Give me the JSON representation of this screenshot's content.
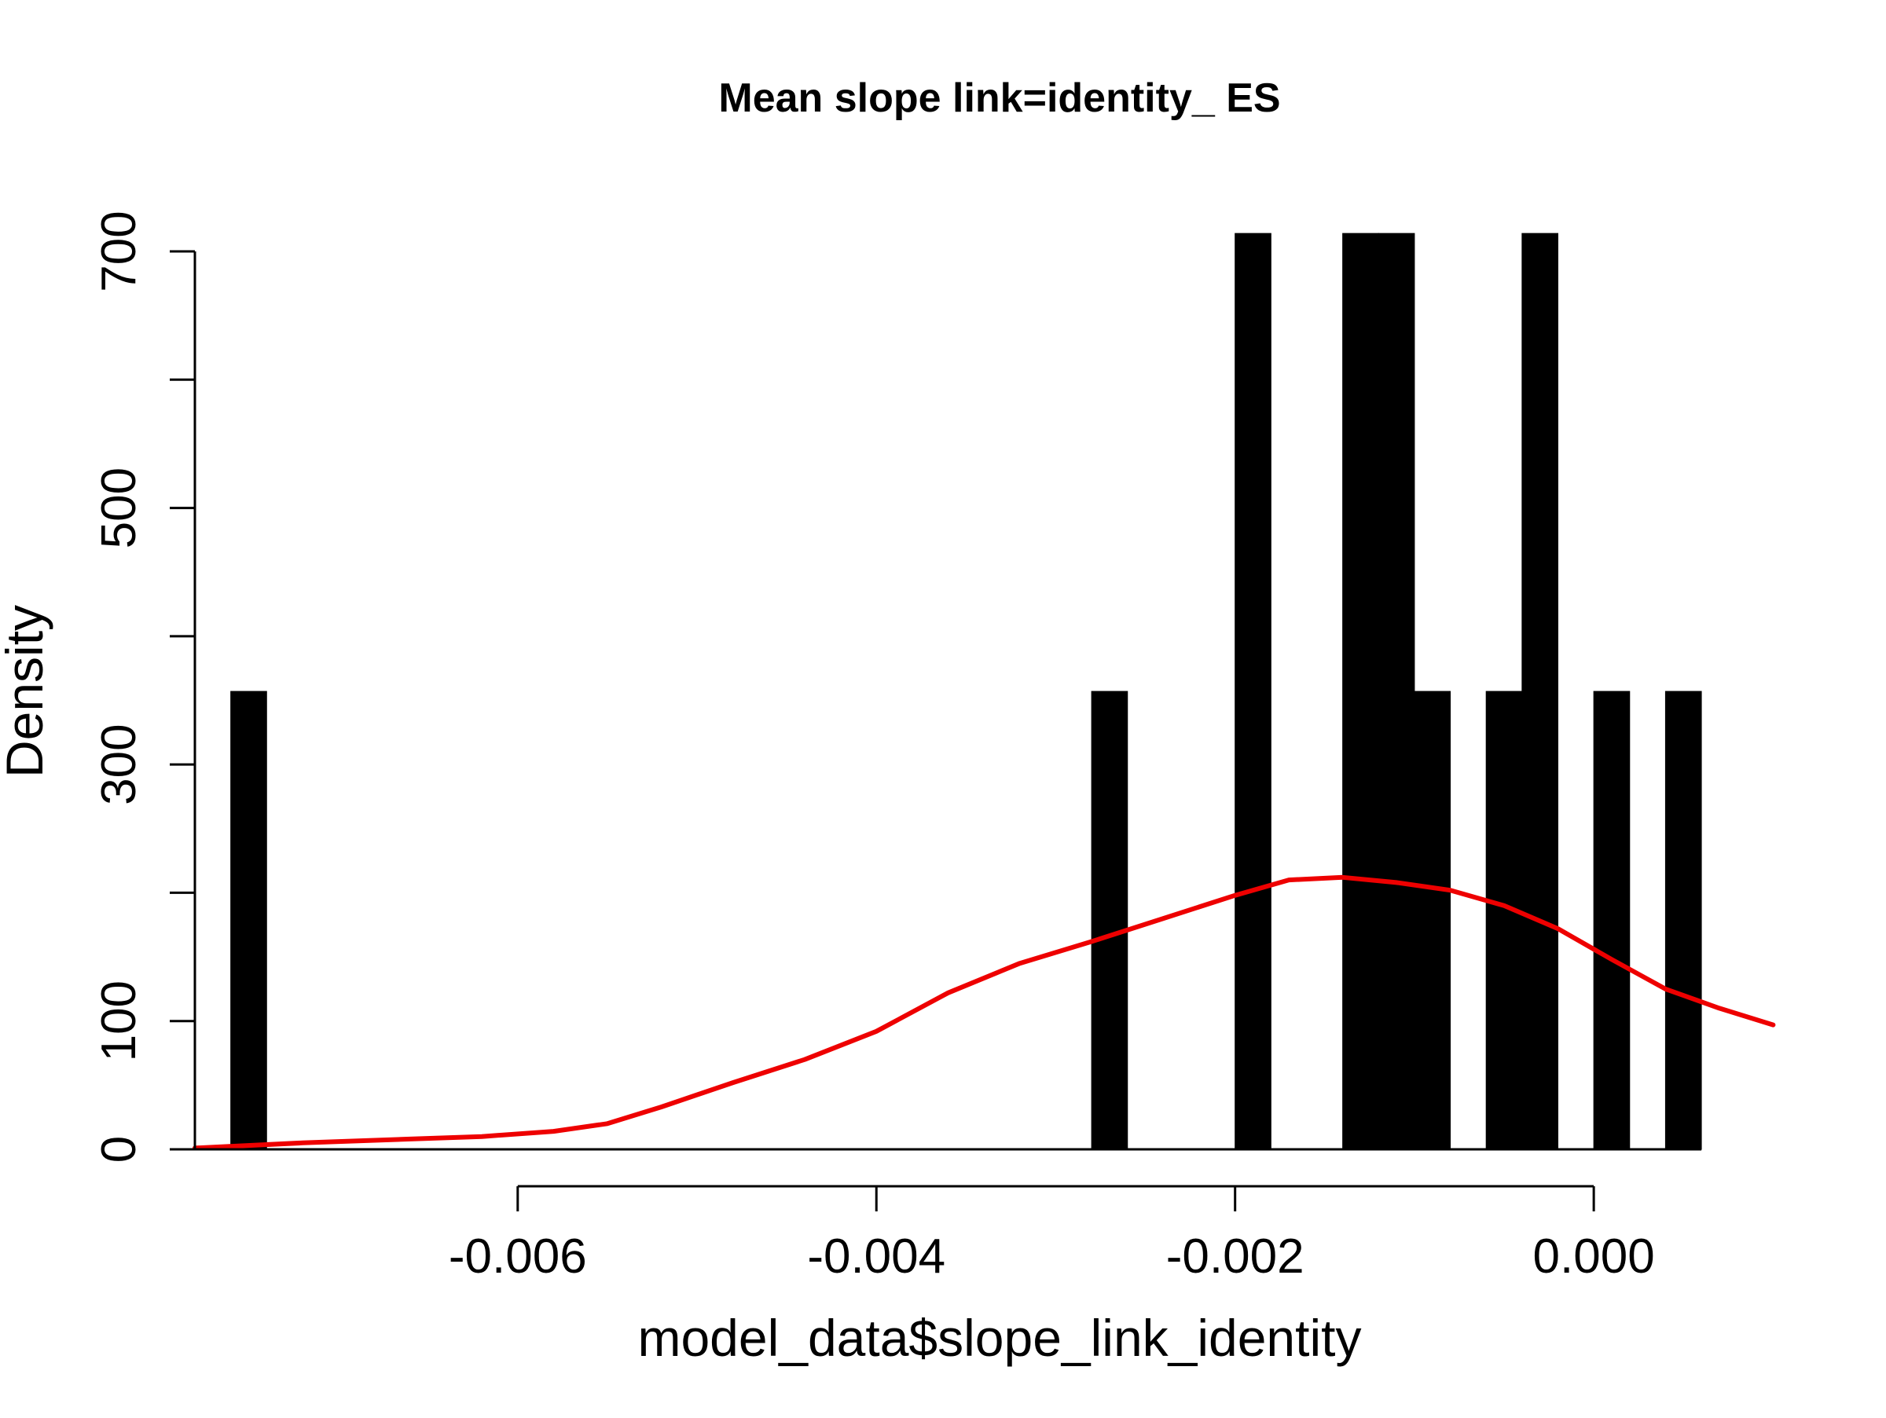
{
  "chart_data": {
    "type": "bar",
    "subtype": "histogram with density curve",
    "title": "Mean slope link=identity_ ES",
    "xlabel": "model_data$slope_link_identity",
    "ylabel": "Density",
    "xlim": [
      -0.0078,
      0.0012
    ],
    "ylim": [
      0,
      700
    ],
    "x_ticks": [
      -0.006,
      -0.004,
      -0.002,
      0.0
    ],
    "x_tick_labels": [
      "-0.006",
      "-0.004",
      "-0.002",
      "0.000"
    ],
    "y_ticks": [
      0,
      100,
      200,
      300,
      400,
      500,
      600,
      700
    ],
    "y_tick_labels": [
      "0",
      "100",
      "",
      "300",
      "",
      "500",
      "",
      "700"
    ],
    "bin_width": 0.0002,
    "bins": [
      {
        "x0": -0.0076,
        "x1": -0.0074,
        "density": 357
      },
      {
        "x0": -0.0028,
        "x1": -0.0026,
        "density": 357
      },
      {
        "x0": -0.002,
        "x1": -0.0018,
        "density": 714
      },
      {
        "x0": -0.0014,
        "x1": -0.0012,
        "density": 714
      },
      {
        "x0": -0.0012,
        "x1": -0.001,
        "density": 714
      },
      {
        "x0": -0.001,
        "x1": -0.0008,
        "density": 357
      },
      {
        "x0": -0.0006,
        "x1": -0.0004,
        "density": 357
      },
      {
        "x0": -0.0004,
        "x1": -0.0002,
        "density": 714
      },
      {
        "x0": 0.0,
        "x1": 0.0002,
        "density": 357
      },
      {
        "x0": 0.0004,
        "x1": 0.0006,
        "density": 357
      }
    ],
    "density_curve": {
      "color": "#ee0000",
      "x": [
        -0.0078,
        -0.0072,
        -0.0066,
        -0.0062,
        -0.0058,
        -0.0055,
        -0.0052,
        -0.0048,
        -0.0044,
        -0.004,
        -0.0036,
        -0.0032,
        -0.0028,
        -0.0024,
        -0.002,
        -0.0017,
        -0.0014,
        -0.0011,
        -0.0008,
        -0.0005,
        -0.0002,
        0.0001,
        0.0004,
        0.0007,
        0.001
      ],
      "y": [
        1,
        5,
        8,
        10,
        14,
        20,
        33,
        52,
        70,
        92,
        122,
        145,
        162,
        180,
        198,
        210,
        212,
        208,
        202,
        190,
        172,
        148,
        125,
        110,
        97
      ]
    },
    "bar_color": "#000000",
    "grid": false,
    "legend": "none"
  }
}
